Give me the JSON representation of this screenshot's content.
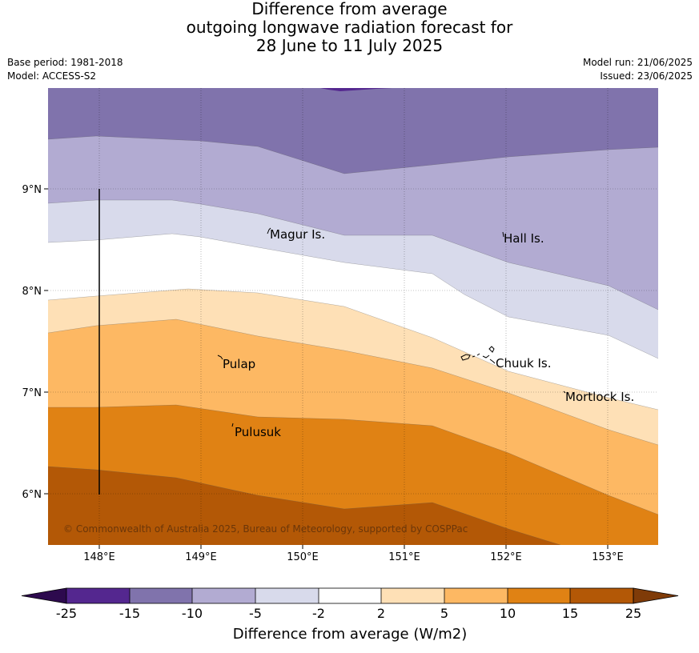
{
  "title": {
    "line1": "Difference from average",
    "line2": "outgoing longwave radiation forecast for",
    "line3": "28 June to 11 July 2025"
  },
  "meta": {
    "base_period": "Base period: 1981-2018",
    "model": "Model: ACCESS-S2",
    "model_run": "Model run: 21/06/2025",
    "issued": "Issued: 23/06/2025"
  },
  "map": {
    "lon_ticks": [
      "148°E",
      "149°E",
      "150°E",
      "151°E",
      "152°E",
      "153°E"
    ],
    "lat_ticks": [
      "9°N",
      "8°N",
      "7°N",
      "6°N"
    ],
    "places": {
      "magur": "Magur Is.",
      "hall": "Hall Is.",
      "pulap": "Pulap",
      "chuuk": "Chuuk Is.",
      "mortlock": "Mortlock Is.",
      "pulusuk": "Pulusuk"
    },
    "copyright": "© Commonwealth of Australia 2025, Bureau of Meteorology, supported by COSPPac"
  },
  "colorbar": {
    "title": "Difference from average (W/m2)",
    "tick_labels": [
      "-25",
      "-15",
      "-10",
      "-5",
      "-2",
      "2",
      "5",
      "10",
      "15",
      "25"
    ],
    "colors": {
      "lt_minus25": "#2d0a4e",
      "m25_m15": "#54278f",
      "m15_m10": "#8073ac",
      "m10_m5": "#b2abd2",
      "m5_m2": "#d8daeb",
      "m2_2": "#ffffff",
      "p2_p5": "#fee0b6",
      "p5_p10": "#fdb863",
      "p10_p15": "#e08214",
      "p15_p25": "#b35806",
      "gt_25": "#7f3b08"
    }
  }
}
